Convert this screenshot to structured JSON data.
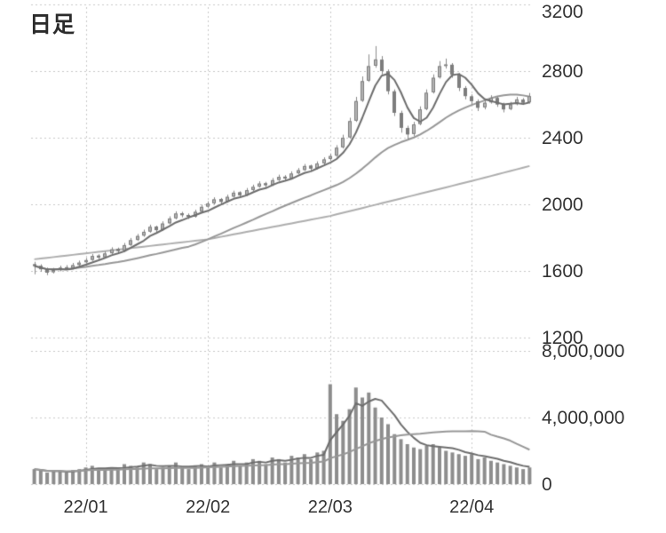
{
  "chart_data": {
    "type": "candlestick",
    "title": "日足",
    "price_axis": {
      "ticks": [
        3200,
        2800,
        2400,
        2000,
        1600,
        1200
      ],
      "labels": [
        "3200",
        "2800",
        "2400",
        "2000",
        "1600",
        "1200"
      ],
      "range": [
        1200,
        3200
      ]
    },
    "volume_axis": {
      "ticks": [
        8000000,
        4000000,
        0
      ],
      "labels": [
        "8,000,000",
        "4,000,000",
        "0"
      ],
      "range": [
        0,
        8000000
      ]
    },
    "x_axis": {
      "tick_labels": [
        "22/01",
        "22/02",
        "22/03",
        "22/04"
      ],
      "tick_indices": [
        8,
        27,
        46,
        68
      ]
    },
    "grid": true,
    "legend": "none",
    "candles_format": [
      "open",
      "high",
      "low",
      "close",
      "volume"
    ],
    "candles": [
      [
        1640,
        1655,
        1580,
        1630,
        900000
      ],
      [
        1630,
        1640,
        1595,
        1610,
        800000
      ],
      [
        1612,
        1620,
        1575,
        1590,
        700000
      ],
      [
        1592,
        1618,
        1585,
        1605,
        750000
      ],
      [
        1606,
        1632,
        1598,
        1620,
        800000
      ],
      [
        1622,
        1635,
        1605,
        1615,
        700000
      ],
      [
        1616,
        1648,
        1610,
        1635,
        850000
      ],
      [
        1636,
        1662,
        1628,
        1650,
        900000
      ],
      [
        1652,
        1678,
        1645,
        1665,
        1000000
      ],
      [
        1666,
        1702,
        1660,
        1690,
        1100000
      ],
      [
        1692,
        1700,
        1668,
        1680,
        900000
      ],
      [
        1682,
        1718,
        1675,
        1705,
        850000
      ],
      [
        1706,
        1742,
        1700,
        1730,
        1000000
      ],
      [
        1732,
        1740,
        1708,
        1720,
        950000
      ],
      [
        1722,
        1768,
        1715,
        1755,
        1200000
      ],
      [
        1756,
        1798,
        1750,
        1785,
        1100000
      ],
      [
        1786,
        1822,
        1780,
        1810,
        1000000
      ],
      [
        1812,
        1848,
        1805,
        1835,
        1300000
      ],
      [
        1836,
        1878,
        1830,
        1865,
        1200000
      ],
      [
        1866,
        1872,
        1832,
        1845,
        900000
      ],
      [
        1846,
        1898,
        1840,
        1885,
        1000000
      ],
      [
        1886,
        1928,
        1880,
        1915,
        1100000
      ],
      [
        1916,
        1958,
        1910,
        1945,
        1300000
      ],
      [
        1946,
        1955,
        1922,
        1935,
        1000000
      ],
      [
        1936,
        1945,
        1912,
        1925,
        900000
      ],
      [
        1926,
        1968,
        1920,
        1955,
        1100000
      ],
      [
        1956,
        1998,
        1950,
        1985,
        1200000
      ],
      [
        1986,
        2018,
        1980,
        2005,
        1100000
      ],
      [
        2006,
        2042,
        2000,
        2030,
        1300000
      ],
      [
        2032,
        2038,
        2002,
        2015,
        1000000
      ],
      [
        2016,
        2058,
        2010,
        2045,
        1200000
      ],
      [
        2046,
        2082,
        2040,
        2070,
        1400000
      ],
      [
        2072,
        2078,
        2042,
        2055,
        1100000
      ],
      [
        2056,
        2098,
        2050,
        2085,
        1300000
      ],
      [
        2086,
        2118,
        2080,
        2105,
        1500000
      ],
      [
        2106,
        2138,
        2100,
        2125,
        1400000
      ],
      [
        2126,
        2135,
        2102,
        2115,
        1200000
      ],
      [
        2116,
        2158,
        2110,
        2145,
        1600000
      ],
      [
        2146,
        2178,
        2140,
        2165,
        1500000
      ],
      [
        2166,
        2175,
        2142,
        2155,
        1300000
      ],
      [
        2156,
        2198,
        2150,
        2185,
        1700000
      ],
      [
        2186,
        2218,
        2180,
        2205,
        1600000
      ],
      [
        2206,
        2242,
        2200,
        2230,
        1800000
      ],
      [
        2232,
        2238,
        2202,
        2215,
        1500000
      ],
      [
        2216,
        2258,
        2210,
        2245,
        1900000
      ],
      [
        2246,
        2282,
        2240,
        2270,
        2000000
      ],
      [
        2272,
        2305,
        2262,
        2290,
        6000000
      ],
      [
        2292,
        2355,
        2285,
        2340,
        4200000
      ],
      [
        2342,
        2418,
        2335,
        2400,
        3800000
      ],
      [
        2402,
        2520,
        2395,
        2500,
        4500000
      ],
      [
        2502,
        2645,
        2495,
        2620,
        5800000
      ],
      [
        2622,
        2768,
        2615,
        2740,
        5200000
      ],
      [
        2742,
        2900,
        2735,
        2830,
        5500000
      ],
      [
        2832,
        2950,
        2820,
        2870,
        4600000
      ],
      [
        2868,
        2890,
        2780,
        2800,
        4000000
      ],
      [
        2798,
        2810,
        2660,
        2680,
        3600000
      ],
      [
        2678,
        2690,
        2530,
        2550,
        3000000
      ],
      [
        2548,
        2562,
        2430,
        2460,
        2700000
      ],
      [
        2458,
        2472,
        2390,
        2420,
        2400000
      ],
      [
        2422,
        2495,
        2410,
        2480,
        2200000
      ],
      [
        2482,
        2588,
        2475,
        2570,
        2100000
      ],
      [
        2572,
        2690,
        2565,
        2670,
        2300000
      ],
      [
        2672,
        2780,
        2665,
        2760,
        2400000
      ],
      [
        2762,
        2860,
        2755,
        2830,
        2200000
      ],
      [
        2832,
        2875,
        2815,
        2840,
        2000000
      ],
      [
        2838,
        2848,
        2760,
        2780,
        1900000
      ],
      [
        2778,
        2788,
        2680,
        2700,
        1800000
      ],
      [
        2698,
        2710,
        2630,
        2650,
        1700000
      ],
      [
        2648,
        2660,
        2600,
        2620,
        1800000
      ],
      [
        2618,
        2630,
        2560,
        2580,
        1500000
      ],
      [
        2582,
        2625,
        2570,
        2610,
        1600000
      ],
      [
        2612,
        2655,
        2605,
        2640,
        1400000
      ],
      [
        2638,
        2648,
        2585,
        2600,
        1300000
      ],
      [
        2598,
        2610,
        2552,
        2570,
        1200000
      ],
      [
        2572,
        2615,
        2565,
        2600,
        1100000
      ],
      [
        2602,
        2645,
        2595,
        2630,
        1000000
      ],
      [
        2628,
        2638,
        2598,
        2610,
        900000
      ],
      [
        2612,
        2668,
        2605,
        2650,
        1000000
      ]
    ],
    "moving_averages": {
      "price_short_period": 5,
      "price_medium_period": 25,
      "long_line": {
        "indices": [
          0,
          27,
          46,
          68,
          77
        ],
        "values": [
          1670,
          1790,
          1930,
          2140,
          2230
        ]
      },
      "volume_short_period": 5,
      "volume_medium_period": 25
    },
    "colors": {
      "background": "#ffffff",
      "grid": "#c9c9c9",
      "candle_up": "#b3b3b3",
      "candle_down": "#7d7d7d",
      "wick": "#8a8a8a",
      "ma_short": "#6e6e6e",
      "ma_medium": "#989898",
      "ma_long": "#aeaeae",
      "volume_bar": "#8d8d8d",
      "text": "#333333"
    }
  }
}
